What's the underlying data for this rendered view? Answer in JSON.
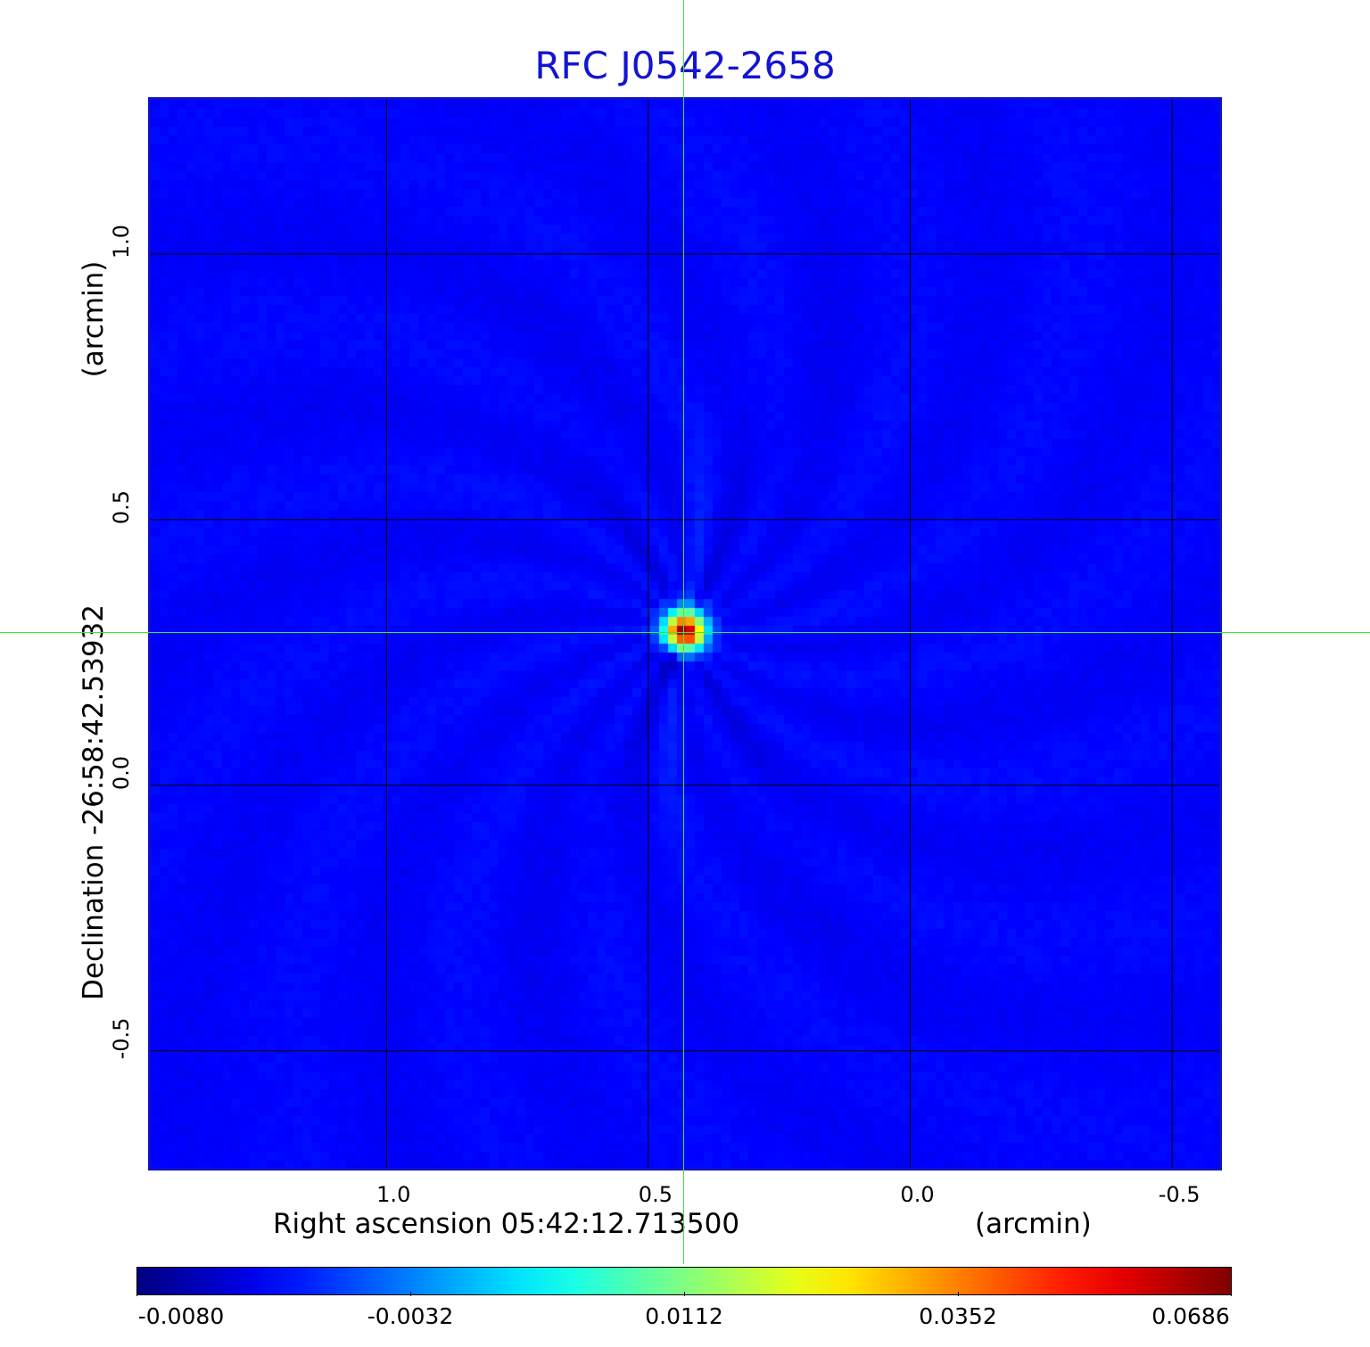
{
  "chart_data": {
    "type": "heatmap",
    "title": "RFC J0542-2658",
    "xlabel": "Right ascension  05:42:12.713500",
    "xunit": "(arcmin)",
    "ylabel": "Declination  -26:58:42.53932",
    "yunit": "(arcmin)",
    "xlim": [
      1.45,
      -0.59
    ],
    "ylim": [
      -0.72,
      1.29
    ],
    "x_ticks": [
      {
        "value": 1.0,
        "label": "1.0"
      },
      {
        "value": 0.5,
        "label": "0.5"
      },
      {
        "value": 0.0,
        "label": "0.0"
      },
      {
        "value": -0.5,
        "label": "-0.5"
      }
    ],
    "y_ticks": [
      {
        "value": 1.0,
        "label": "1.0"
      },
      {
        "value": 0.5,
        "label": "0.5"
      },
      {
        "value": 0.0,
        "label": "0.0"
      },
      {
        "value": -0.5,
        "label": "-0.5"
      }
    ],
    "grid": true,
    "crosshair": {
      "x": 0.43,
      "y": 0.29
    },
    "source": {
      "x": 0.43,
      "y": 0.29,
      "peak": 0.0686
    },
    "colorscale": "jet",
    "colorbar_range": [
      -0.008,
      0.0686
    ],
    "colorbar_ticks": [
      {
        "value": -0.008,
        "label": "-0.0080"
      },
      {
        "value": -0.0032,
        "label": "-0.0032"
      },
      {
        "value": 0.0112,
        "label": "0.0112"
      },
      {
        "value": 0.0352,
        "label": "0.0352"
      },
      {
        "value": 0.0686,
        "label": "0.0686"
      }
    ]
  }
}
